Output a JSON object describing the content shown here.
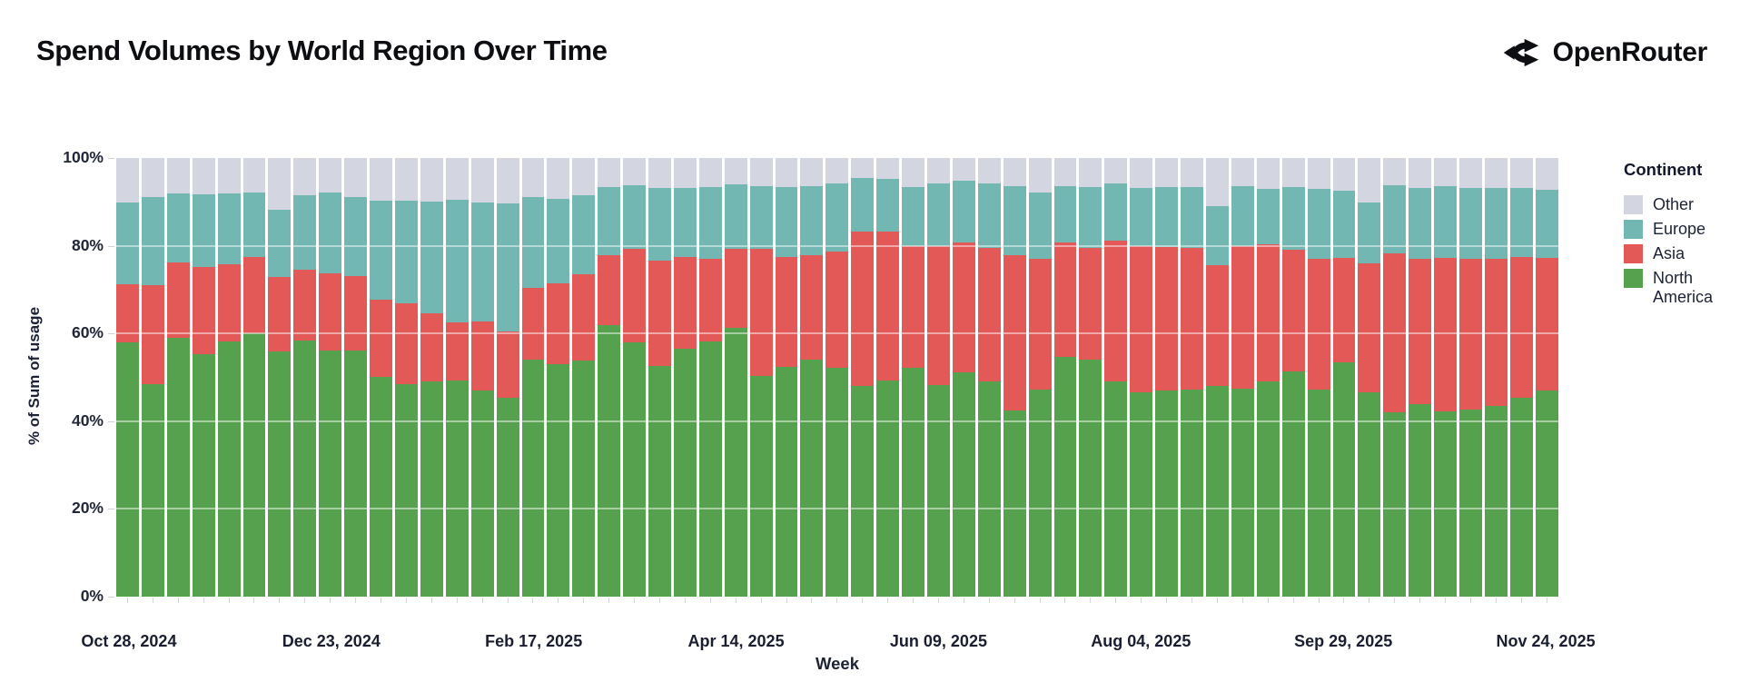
{
  "header": {
    "title": "Spend Volumes by World Region Over Time",
    "brand": "OpenRouter"
  },
  "chart_data": {
    "type": "bar",
    "stacked": true,
    "normalized_percent": true,
    "title": "Spend Volumes by World Region Over Time",
    "xlabel": "Week",
    "ylabel": "% of Sum of usage",
    "ylim": [
      0,
      100
    ],
    "y_tick_labels": [
      "100%",
      "80%",
      "60%",
      "40%",
      "20%",
      "0%"
    ],
    "grid": "horizontal",
    "legend_position": "right",
    "legend": {
      "title": "Continent",
      "entries": [
        {
          "label": "Other",
          "color": "#d3d5e0"
        },
        {
          "label": "Europe",
          "color": "#72b7b1"
        },
        {
          "label": "Asia",
          "color": "#e25958"
        },
        {
          "label": "North America",
          "color": "#55a14e"
        }
      ]
    },
    "x_tick_labels": [
      "Oct 28, 2024",
      "Dec 23, 2024",
      "Feb 17, 2025",
      "Apr 14, 2025",
      "Jun 09, 2025",
      "Aug 04, 2025",
      "Sep 29, 2025",
      "Nov 24, 2025"
    ],
    "x_tick_indices": [
      0,
      8,
      16,
      24,
      32,
      40,
      48,
      56
    ],
    "categories": [
      "2024-10-28",
      "2024-11-04",
      "2024-11-11",
      "2024-11-18",
      "2024-11-25",
      "2024-12-02",
      "2024-12-09",
      "2024-12-16",
      "2024-12-23",
      "2024-12-30",
      "2025-01-06",
      "2025-01-13",
      "2025-01-20",
      "2025-01-27",
      "2025-02-03",
      "2025-02-10",
      "2025-02-17",
      "2025-02-24",
      "2025-03-03",
      "2025-03-10",
      "2025-03-17",
      "2025-03-24",
      "2025-03-31",
      "2025-04-07",
      "2025-04-14",
      "2025-04-21",
      "2025-04-28",
      "2025-05-05",
      "2025-05-12",
      "2025-05-19",
      "2025-05-26",
      "2025-06-02",
      "2025-06-09",
      "2025-06-16",
      "2025-06-23",
      "2025-06-30",
      "2025-07-07",
      "2025-07-14",
      "2025-07-21",
      "2025-07-28",
      "2025-08-04",
      "2025-08-11",
      "2025-08-18",
      "2025-08-25",
      "2025-09-01",
      "2025-09-08",
      "2025-09-15",
      "2025-09-22",
      "2025-09-29",
      "2025-10-06",
      "2025-10-13",
      "2025-10-20",
      "2025-10-27",
      "2025-11-03",
      "2025-11-10",
      "2025-11-17",
      "2025-11-24"
    ],
    "series": [
      {
        "name": "North America",
        "color": "#55a14e",
        "values": [
          58.0,
          48.5,
          59.0,
          55.2,
          58.1,
          60.1,
          56.0,
          58.3,
          56.2,
          56.2,
          50.0,
          48.4,
          49.0,
          49.3,
          47.1,
          45.3,
          54.0,
          52.9,
          53.8,
          62.0,
          57.9,
          52.6,
          56.5,
          58.1,
          61.3,
          50.3,
          52.4,
          54.0,
          52.2,
          48.1,
          49.3,
          52.1,
          48.2,
          51.2,
          49.1,
          42.4,
          47.1,
          54.7,
          54.0,
          49.1,
          46.5,
          47.0,
          47.3,
          48.0,
          47.5,
          49.0,
          51.4,
          47.3,
          53.4,
          46.6,
          42.1,
          43.9,
          42.3,
          42.6,
          43.5,
          45.4,
          47.0
        ]
      },
      {
        "name": "Asia",
        "color": "#e25958",
        "values": [
          13.2,
          22.5,
          17.2,
          20.0,
          17.6,
          17.3,
          16.8,
          16.3,
          17.6,
          16.9,
          17.7,
          18.4,
          15.5,
          13.3,
          15.6,
          15.1,
          16.3,
          18.5,
          19.8,
          15.9,
          21.4,
          23.9,
          20.9,
          19.0,
          18.0,
          29.0,
          25.0,
          23.9,
          26.4,
          35.1,
          33.9,
          27.9,
          31.8,
          29.5,
          30.4,
          35.4,
          30.0,
          26.0,
          25.6,
          32.1,
          33.5,
          32.8,
          32.1,
          27.6,
          32.4,
          31.4,
          27.6,
          29.8,
          23.9,
          29.3,
          36.2,
          33.1,
          35.0,
          34.4,
          33.5,
          32.0,
          30.3
        ]
      },
      {
        "name": "Europe",
        "color": "#72b7b1",
        "values": [
          18.6,
          20.2,
          15.7,
          16.5,
          16.2,
          14.7,
          15.5,
          17.0,
          18.3,
          18.1,
          22.5,
          23.5,
          25.5,
          27.9,
          27.1,
          29.2,
          20.9,
          19.3,
          18.0,
          15.4,
          14.5,
          16.6,
          15.7,
          16.2,
          14.7,
          14.3,
          15.9,
          15.6,
          15.5,
          12.2,
          12.0,
          13.3,
          14.3,
          14.2,
          14.7,
          15.8,
          15.0,
          12.9,
          13.7,
          13.0,
          13.2,
          13.5,
          13.9,
          13.4,
          13.7,
          12.5,
          14.3,
          15.9,
          15.3,
          14.0,
          15.4,
          16.2,
          16.3,
          16.1,
          16.2,
          15.7,
          15.5
        ]
      },
      {
        "name": "Other",
        "color": "#d3d5e0",
        "values": [
          10.2,
          8.8,
          8.1,
          8.3,
          8.1,
          7.9,
          11.7,
          8.4,
          7.9,
          8.8,
          9.8,
          9.7,
          10.0,
          9.5,
          10.2,
          10.4,
          8.8,
          9.3,
          8.4,
          6.7,
          6.2,
          6.9,
          6.9,
          6.7,
          6.0,
          6.4,
          6.7,
          6.5,
          5.9,
          4.6,
          4.8,
          6.7,
          5.7,
          5.1,
          5.8,
          6.4,
          7.9,
          6.4,
          6.7,
          5.8,
          6.8,
          6.7,
          6.7,
          11.0,
          6.4,
          7.1,
          6.7,
          7.0,
          7.4,
          10.1,
          6.3,
          6.8,
          6.4,
          6.9,
          6.8,
          6.9,
          7.2
        ]
      }
    ]
  }
}
